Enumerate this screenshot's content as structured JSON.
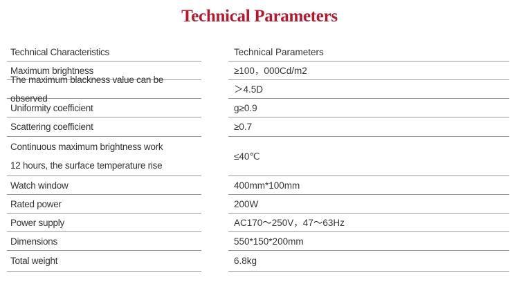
{
  "title": "Technical Parameters",
  "table": {
    "headers": [
      "Technical Characteristics",
      "Technical Parameters"
    ],
    "rows": [
      [
        "Maximum brightness",
        "≥100，000Cd/m2"
      ],
      [
        "The maximum blackness value can be observed",
        "＞4.5D"
      ],
      [
        "Uniformity coefficient",
        "g≥0.9"
      ],
      [
        "Scattering coefficient",
        "≥0.7"
      ],
      [
        "Continuous maximum brightness work 12 hours, the surface temperature rise",
        "≤40℃"
      ],
      [
        "Watch window",
        "400mm*100mm"
      ],
      [
        "Rated power",
        "200W"
      ],
      [
        "Power supply",
        "AC170～250V，47～63Hz"
      ],
      [
        "Dimensions",
        "550*150*200mm"
      ],
      [
        "Total weight",
        "6.8kg"
      ]
    ]
  },
  "colors": {
    "title": "#b11a2f",
    "text": "#333333",
    "rule": "#999999"
  }
}
